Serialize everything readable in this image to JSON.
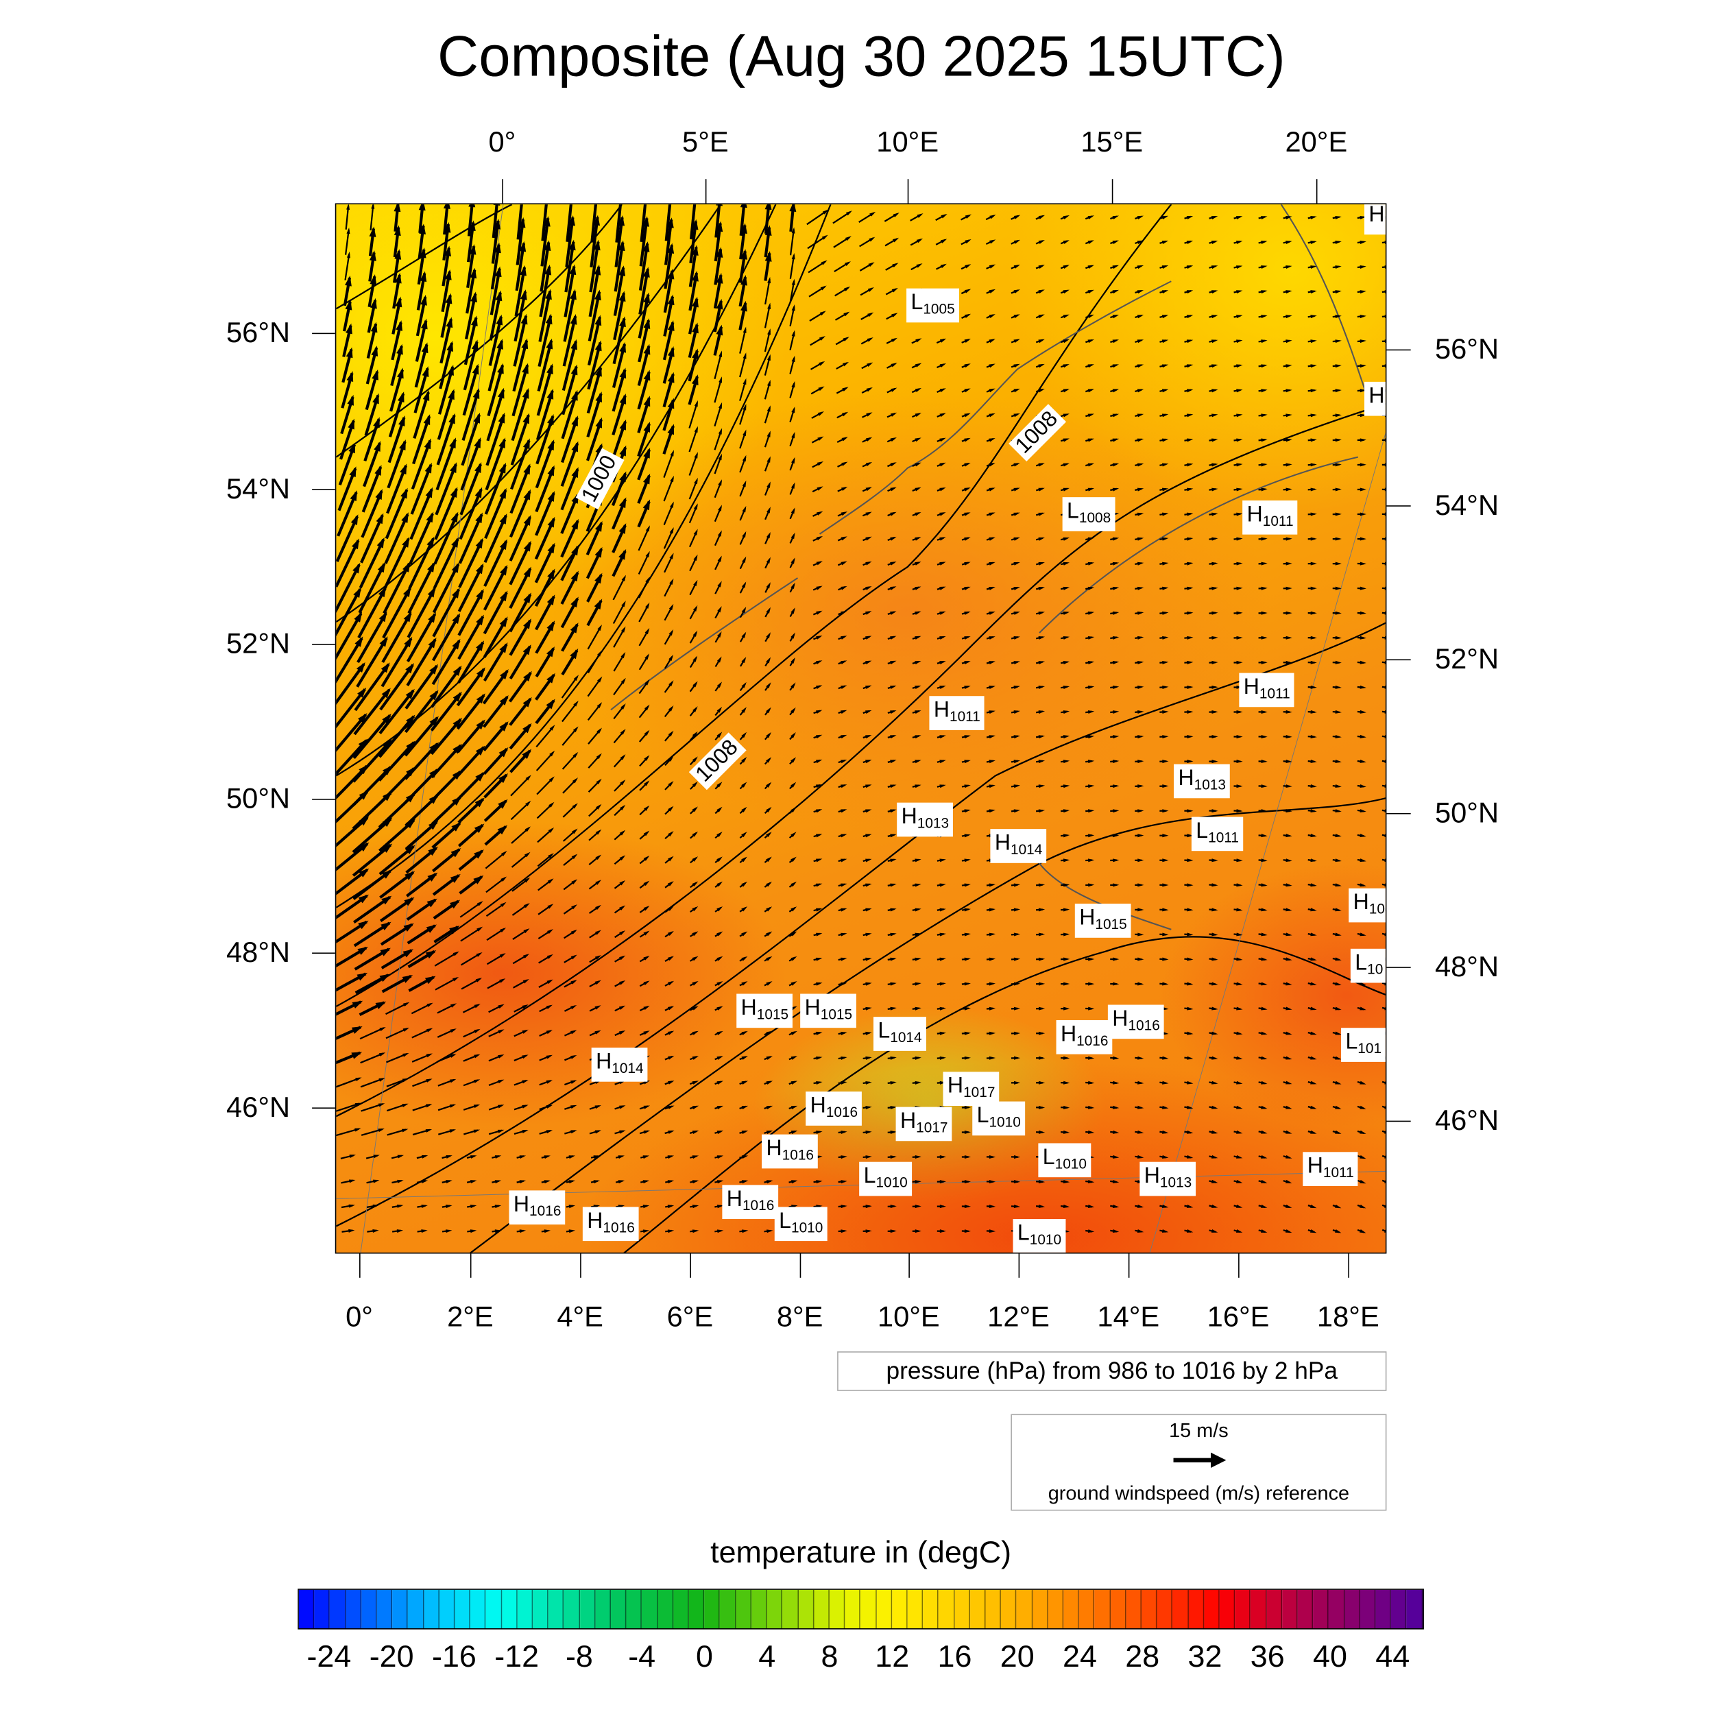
{
  "chart_data": {
    "type": "heatmap",
    "title": "Composite (Aug 30 2025 15UTC)",
    "top_lon_ticks": [
      "0°",
      "5°E",
      "10°E",
      "15°E",
      "20°E"
    ],
    "bottom_lon_ticks": [
      "0°",
      "2°E",
      "4°E",
      "6°E",
      "8°E",
      "10°E",
      "12°E",
      "14°E",
      "16°E",
      "18°E"
    ],
    "left_lat_ticks": [
      "56°N",
      "54°N",
      "52°N",
      "50°N",
      "48°N",
      "46°N"
    ],
    "right_lat_ticks": [
      "56°N",
      "54°N",
      "52°N",
      "50°N",
      "48°N",
      "46°N"
    ],
    "contour_labels": [
      "1000",
      "1008",
      "1008"
    ],
    "pressure_centers": [
      {
        "t": "L",
        "v": "1005"
      },
      {
        "t": "H",
        "v": ""
      },
      {
        "t": "H",
        "v": ""
      },
      {
        "t": "L",
        "v": "1008"
      },
      {
        "t": "H",
        "v": "1011"
      },
      {
        "t": "H",
        "v": "1011"
      },
      {
        "t": "H",
        "v": "1011"
      },
      {
        "t": "H",
        "v": "1013"
      },
      {
        "t": "H",
        "v": "1013"
      },
      {
        "t": "L",
        "v": "1011"
      },
      {
        "t": "H",
        "v": "1014"
      },
      {
        "t": "H",
        "v": "10"
      },
      {
        "t": "H",
        "v": "1015"
      },
      {
        "t": "L",
        "v": "10"
      },
      {
        "t": "H",
        "v": "1015"
      },
      {
        "t": "H",
        "v": "1015"
      },
      {
        "t": "L",
        "v": "1014"
      },
      {
        "t": "H",
        "v": "1016"
      },
      {
        "t": "H",
        "v": "1016"
      },
      {
        "t": "L",
        "v": "101"
      },
      {
        "t": "H",
        "v": "1014"
      },
      {
        "t": "H",
        "v": "1017"
      },
      {
        "t": "H",
        "v": "1016"
      },
      {
        "t": "L",
        "v": "1010"
      },
      {
        "t": "H",
        "v": "1017"
      },
      {
        "t": "H",
        "v": "1016"
      },
      {
        "t": "L",
        "v": "1010"
      },
      {
        "t": "L",
        "v": "1010"
      },
      {
        "t": "H",
        "v": "1013"
      },
      {
        "t": "H",
        "v": "1011"
      },
      {
        "t": "H",
        "v": "1016"
      },
      {
        "t": "H",
        "v": "1016"
      },
      {
        "t": "H",
        "v": "1016"
      },
      {
        "t": "L",
        "v": "1010"
      },
      {
        "t": "L",
        "v": "1010"
      }
    ],
    "pressure_legend": "pressure (hPa) from 986 to 1016 by 2 hPa",
    "wind_reference": {
      "label": "15 m/s",
      "value": 15,
      "caption": "ground windspeed (m/s) reference"
    },
    "colorbar": {
      "title": "temperature in (degC)",
      "min": -26,
      "max": 46,
      "step": 1,
      "tick_labels": [
        "-24",
        "-20",
        "-16",
        "-12",
        "-8",
        "-4",
        "0",
        "4",
        "8",
        "12",
        "16",
        "20",
        "24",
        "28",
        "32",
        "36",
        "40",
        "44"
      ]
    },
    "colors": {
      "warm": "#f5800e",
      "yellow": "#ffd000",
      "red": "#f03c0a"
    }
  }
}
